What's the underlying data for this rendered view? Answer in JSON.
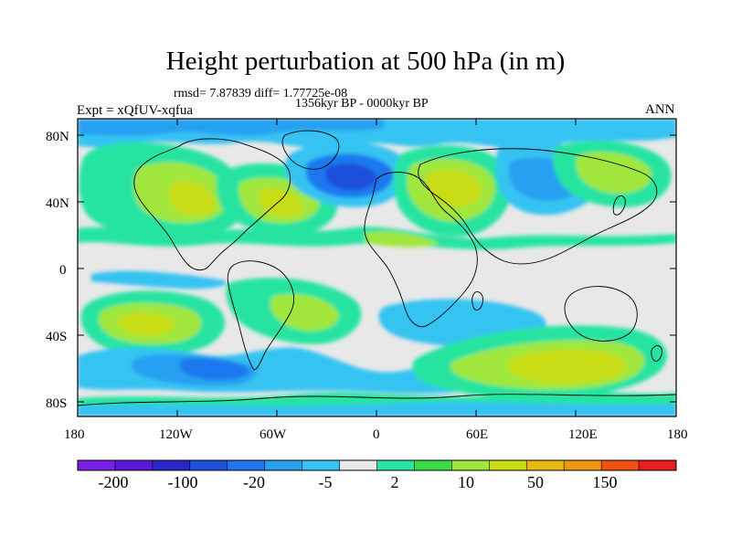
{
  "title": "Height perturbation at 500 hPa (in m)",
  "stats": "rmsd= 7.87839 diff= 1.77725e-08",
  "period": "1356kyr BP - 0000kyr BP",
  "experiment": "Expt = xQfUV-xqfua",
  "season": "ANN",
  "map": {
    "projection": "cylindrical-equidistant",
    "lon_range": [
      -180,
      180
    ],
    "lat_range": [
      -90,
      90
    ],
    "x_ticks": [
      "180",
      "120W",
      "60W",
      "0",
      "60E",
      "120E",
      "180"
    ],
    "y_ticks": [
      "80N",
      "40N",
      "0",
      "40S",
      "80S"
    ],
    "background_color": "#e8e8e8"
  },
  "colorbar": {
    "colors": [
      "#7a1fe6",
      "#5a18d6",
      "#2828c8",
      "#1e50dc",
      "#1e78ee",
      "#28a0f0",
      "#36c3f2",
      "#e8e8e8",
      "#28e4a0",
      "#3cdc46",
      "#a0e63c",
      "#c8dc18",
      "#e8b814",
      "#f09614",
      "#f05014",
      "#e81e1e"
    ],
    "labels": [
      "-200",
      "-100",
      "-20",
      "-5",
      "2",
      "10",
      "50",
      "150"
    ]
  }
}
